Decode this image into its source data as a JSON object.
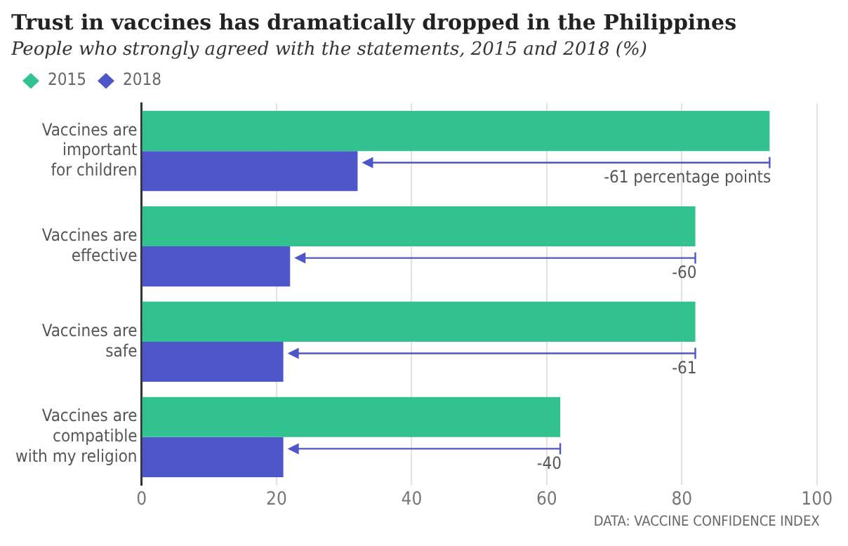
{
  "chart_data": {
    "type": "bar",
    "orientation": "horizontal",
    "title": "Trust in vaccines has dramatically dropped in the Philippines",
    "subtitle": "People who strongly agreed with the statements, 2015 and 2018 (%)",
    "categories": [
      "Vaccines are\nimportant\nfor children",
      "Vaccines are\neffective",
      "Vaccines are\nsafe",
      "Vaccines are\ncompatible\nwith my religion"
    ],
    "series": [
      {
        "name": "2015",
        "color": "#31c290",
        "values": [
          93,
          82,
          82,
          62
        ]
      },
      {
        "name": "2018",
        "color": "#4f56c9",
        "values": [
          32,
          22,
          21,
          21
        ]
      }
    ],
    "xlim": [
      0,
      100
    ],
    "xticks": [
      0,
      20,
      40,
      60,
      80,
      100
    ],
    "grid": "x",
    "legend": "top left",
    "annotations": [
      {
        "text": "-61 percentage points",
        "x": 93,
        "y": "Vaccines are\nimportant\nfor children"
      },
      {
        "text": "-60",
        "x": 82,
        "y": "Vaccines are\neffective"
      },
      {
        "text": "-61",
        "x": 82,
        "y": "Vaccines are\nsafe"
      },
      {
        "text": "-40",
        "x": 62,
        "y": "Vaccines are\ncompatible\nwith my religion"
      },
      "DATA: VACCINE CONFIDENCE INDEX"
    ]
  }
}
